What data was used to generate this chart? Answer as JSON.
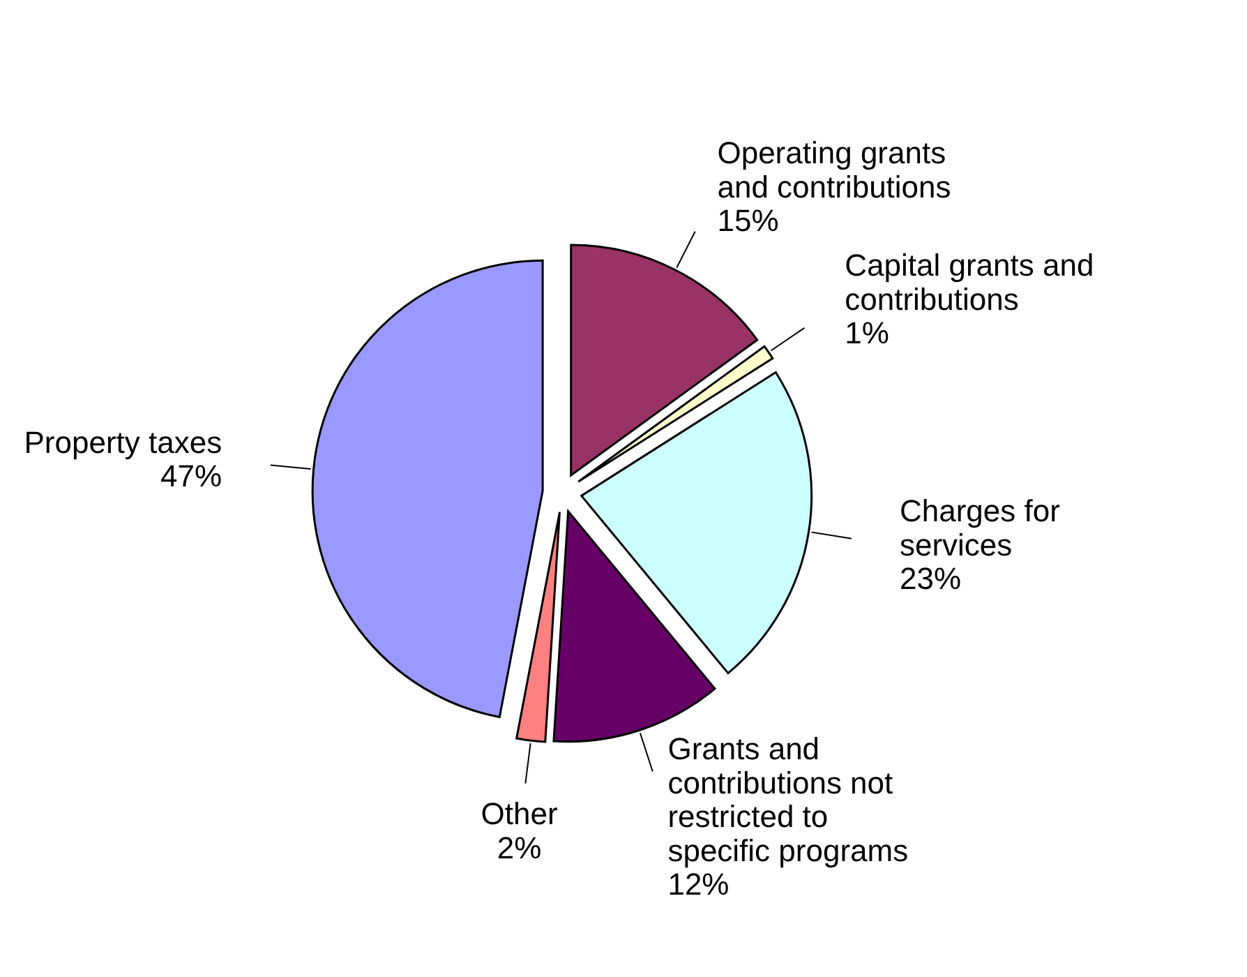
{
  "chart_data": {
    "type": "pie",
    "categories": [
      "Operating grants and contributions",
      "Capital grants and contributions",
      "Charges for services",
      "Grants and contributions not restricted to specific programs",
      "Other",
      "Property taxes"
    ],
    "values": [
      15,
      1,
      23,
      12,
      2,
      47
    ],
    "value_labels": [
      "15%",
      "1%",
      "23%",
      "12%",
      "2%",
      "47%"
    ],
    "colors": [
      "#993366",
      "#ffffcc",
      "#ccffff",
      "#660066",
      "#ff8080",
      "#9999ff"
    ]
  }
}
